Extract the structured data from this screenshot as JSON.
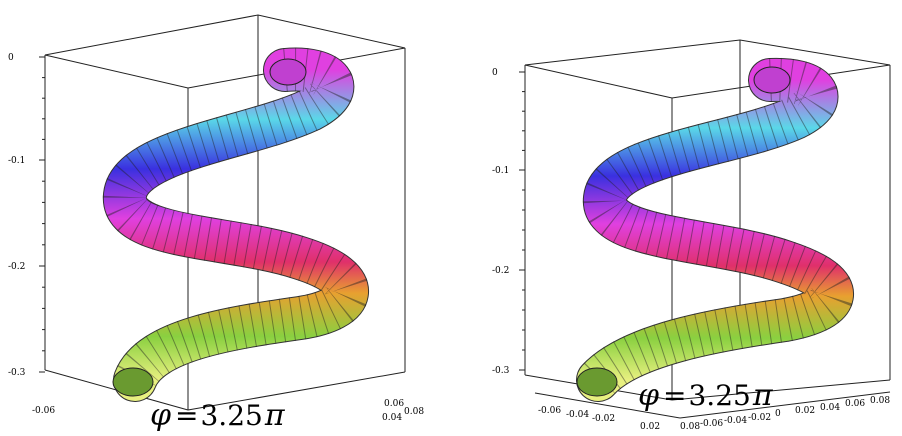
{
  "panels": [
    {
      "y_ticks": [
        "0",
        "-0.1",
        "-0.2",
        "-0.3"
      ],
      "x_ticks": [
        "-0.06"
      ],
      "x_ticks_right": [
        "0.04",
        "0.06",
        "0.08"
      ],
      "caption": {
        "phi": "φ",
        "eq": "=",
        "value": "3.25",
        "pi": "π"
      }
    },
    {
      "y_ticks": [
        "0",
        "-0.1",
        "-0.2",
        "-0.3"
      ],
      "x_ticks": [
        "-0.06",
        "-0.04",
        "-0.02",
        "0.02"
      ],
      "x_ticks_right": [
        "0.08",
        "-0.06",
        "-0.04",
        "-0.02",
        "0",
        "0.02",
        "0.04",
        "0.06",
        "0.08"
      ],
      "caption": {
        "phi": "φ",
        "eq": "=",
        "value": "3.25",
        "pi": "π"
      }
    }
  ],
  "colors": {
    "magenta": "#e040e0",
    "cyan": "#5ad8e8",
    "blue": "#3a30e0",
    "pink": "#e0306a",
    "orange": "#e8a030",
    "green": "#8ad040",
    "lime": "#e8f080"
  }
}
